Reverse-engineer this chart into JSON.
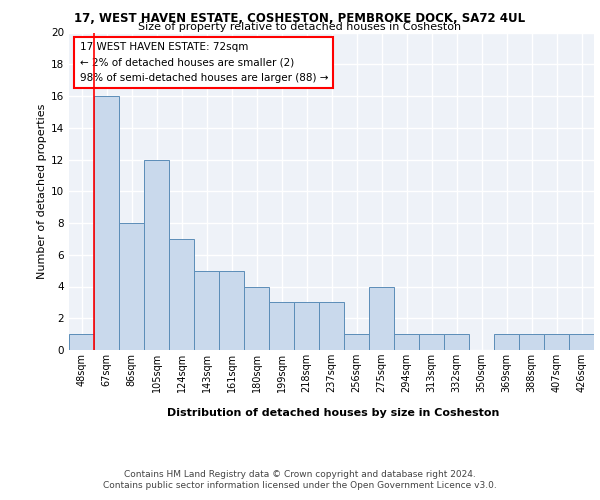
{
  "title1": "17, WEST HAVEN ESTATE, COSHESTON, PEMBROKE DOCK, SA72 4UL",
  "title2": "Size of property relative to detached houses in Cosheston",
  "xlabel": "Distribution of detached houses by size in Cosheston",
  "ylabel": "Number of detached properties",
  "categories": [
    "48sqm",
    "67sqm",
    "86sqm",
    "105sqm",
    "124sqm",
    "143sqm",
    "161sqm",
    "180sqm",
    "199sqm",
    "218sqm",
    "237sqm",
    "256sqm",
    "275sqm",
    "294sqm",
    "313sqm",
    "332sqm",
    "350sqm",
    "369sqm",
    "388sqm",
    "407sqm",
    "426sqm"
  ],
  "values": [
    1,
    16,
    8,
    12,
    7,
    5,
    5,
    4,
    3,
    3,
    3,
    1,
    4,
    1,
    1,
    1,
    0,
    1,
    1,
    1,
    1
  ],
  "bar_color": "#c9d9ec",
  "bar_edge_color": "#5b8db8",
  "ylim": [
    0,
    20
  ],
  "yticks": [
    0,
    2,
    4,
    6,
    8,
    10,
    12,
    14,
    16,
    18,
    20
  ],
  "annotation_title": "17 WEST HAVEN ESTATE: 72sqm",
  "annotation_line1": "← 2% of detached houses are smaller (2)",
  "annotation_line2": "98% of semi-detached houses are larger (88) →",
  "footer1": "Contains HM Land Registry data © Crown copyright and database right 2024.",
  "footer2": "Contains public sector information licensed under the Open Government Licence v3.0.",
  "background_color": "#eef2f8"
}
